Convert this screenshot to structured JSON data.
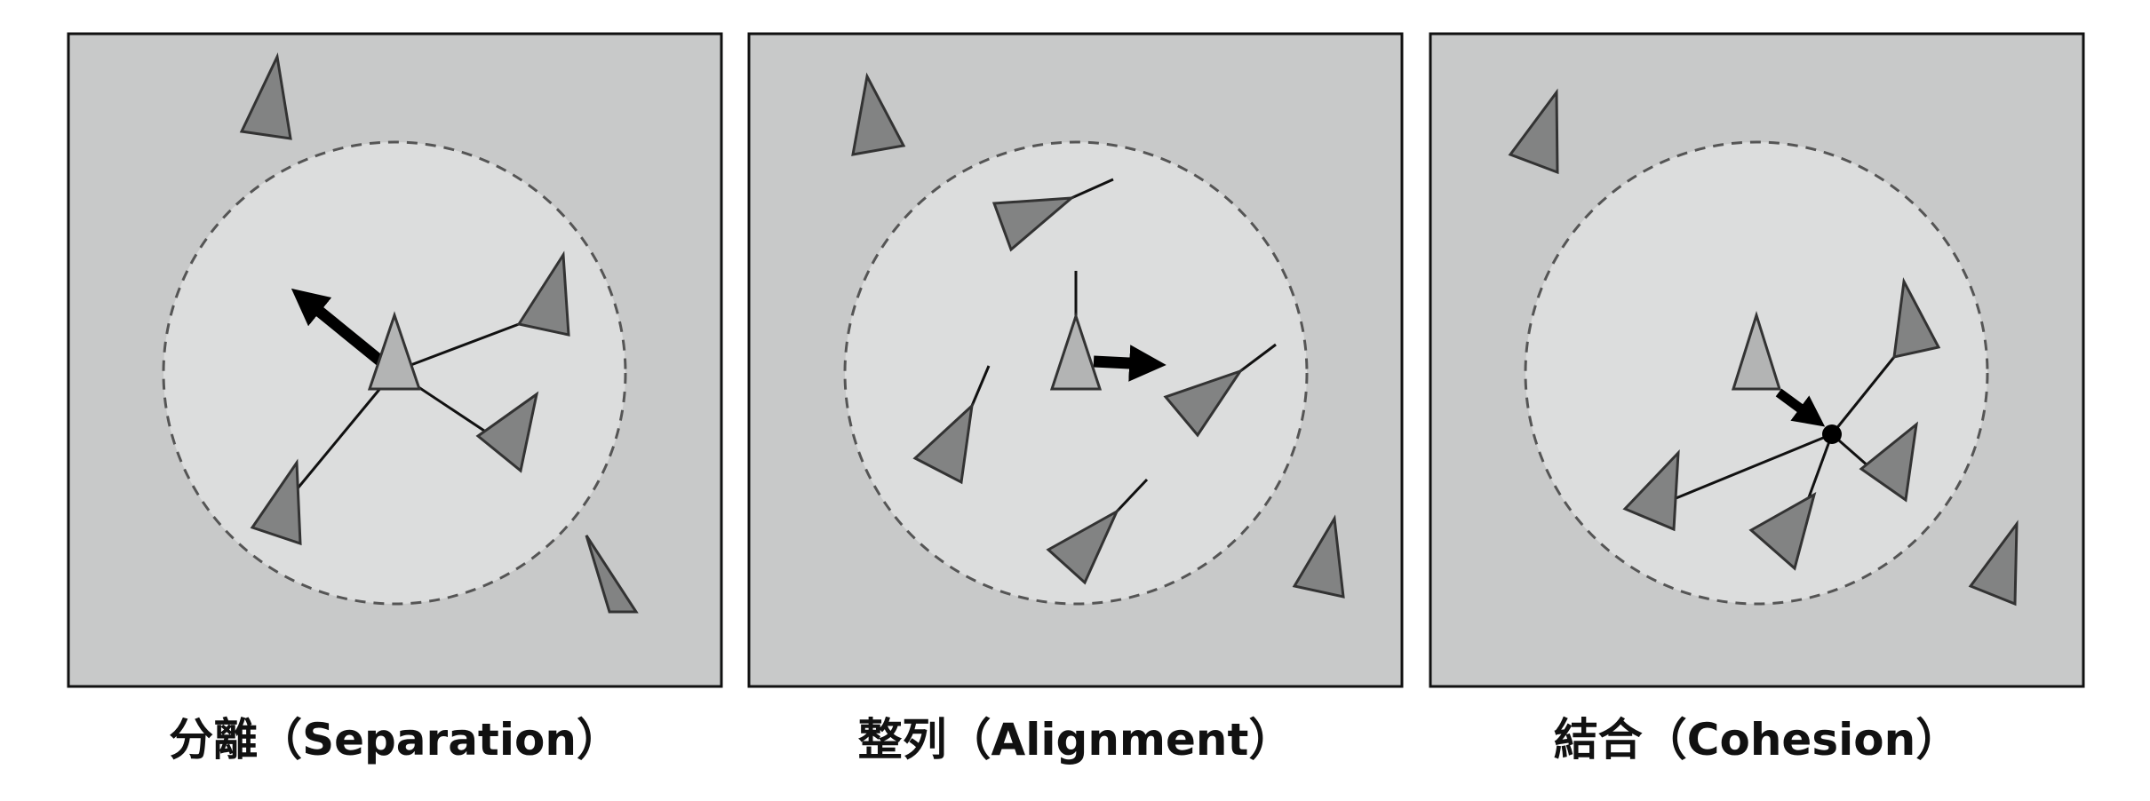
{
  "panels": [
    {
      "id": "separation",
      "caption": "分離（Separation）"
    },
    {
      "id": "alignment",
      "caption": "整列（Alignment）"
    },
    {
      "id": "cohesion",
      "caption": "結合（Cohesion）"
    }
  ],
  "colors": {
    "panel_fill": "#c8c9c9",
    "neighborhood_fill": "#dcdddd",
    "center_boid": "#b3b4b4",
    "other_boid": "#828383",
    "stroke": "#333333",
    "arrow": "#000000"
  }
}
